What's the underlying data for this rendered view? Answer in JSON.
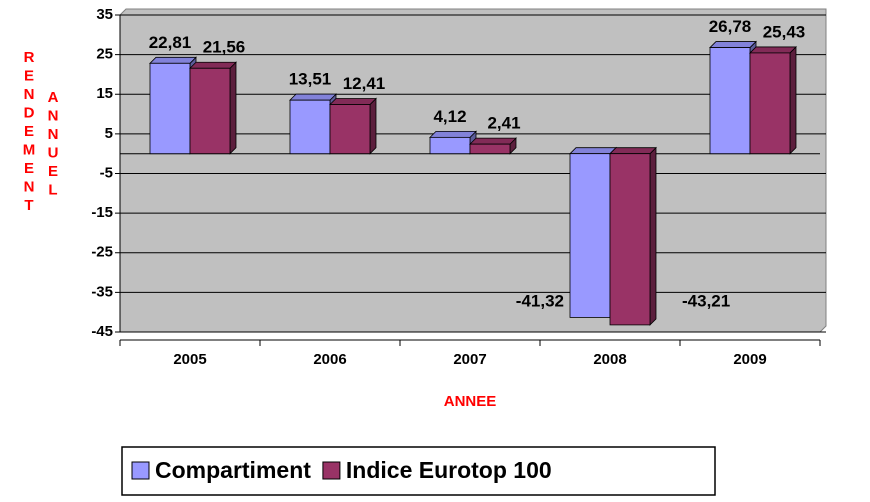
{
  "chart_data": {
    "type": "bar",
    "ylabel": [
      "RENDEMENT",
      "ANNUEL"
    ],
    "xlabel": "ANNEE",
    "categories": [
      "2005",
      "2006",
      "2007",
      "2008",
      "2009"
    ],
    "series": [
      {
        "name": "Compartiment",
        "color": "#9999ff",
        "values": [
          22.81,
          13.51,
          4.12,
          -41.32,
          26.78
        ],
        "value_labels": [
          "22,81",
          "13,51",
          "4,12",
          "-41,32",
          "26,78"
        ]
      },
      {
        "name": "Indice Eurotop 100",
        "color": "#993366",
        "values": [
          21.56,
          12.41,
          2.41,
          -43.21,
          25.43
        ],
        "value_labels": [
          "21,56",
          "12,41",
          "2,41",
          "-43,21",
          "25,43"
        ]
      }
    ],
    "ylim": [
      -45,
      35
    ],
    "yticks": [
      -45,
      -35,
      -25,
      -15,
      -5,
      5,
      15,
      25,
      35
    ],
    "grid": true,
    "legend": "bottom"
  }
}
